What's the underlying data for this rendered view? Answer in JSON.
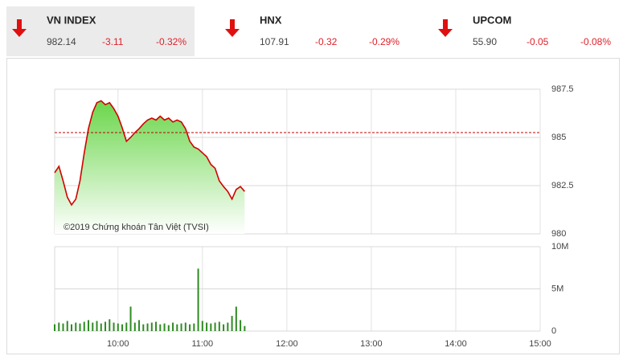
{
  "tickers": [
    {
      "name": "VN INDEX",
      "value": "982.14",
      "change": "-3.11",
      "percent": "-0.32%"
    },
    {
      "name": "HNX",
      "value": "107.91",
      "change": "-0.32",
      "percent": "-0.29%"
    },
    {
      "name": "UPCOM",
      "value": "55.90",
      "change": "-0.05",
      "percent": "-0.08%"
    }
  ],
  "chart_data": [
    {
      "type": "area",
      "copyright": "©2019 Chứng khoán Tân Việt (TVSI)",
      "x": [
        9.25,
        9.3,
        9.35,
        9.4,
        9.45,
        9.5,
        9.55,
        9.6,
        9.65,
        9.7,
        9.75,
        9.8,
        9.85,
        9.9,
        9.95,
        10,
        10.05,
        10.1,
        10.15,
        10.2,
        10.25,
        10.3,
        10.35,
        10.4,
        10.45,
        10.5,
        10.55,
        10.6,
        10.65,
        10.7,
        10.75,
        10.8,
        10.85,
        10.9,
        10.95,
        11,
        11.05,
        11.1,
        11.15,
        11.2,
        11.25,
        11.3,
        11.35,
        11.4,
        11.45,
        11.5
      ],
      "values": [
        983.17,
        983.5,
        982.75,
        981.9,
        981.5,
        981.8,
        982.75,
        984.2,
        985.45,
        986.3,
        986.8,
        986.9,
        986.7,
        986.8,
        986.5,
        986.1,
        985.5,
        984.8,
        985.0,
        985.25,
        985.45,
        985.7,
        985.9,
        986.0,
        985.9,
        986.1,
        985.9,
        986.0,
        985.8,
        985.9,
        985.8,
        985.45,
        984.8,
        984.5,
        984.4,
        984.2,
        984.0,
        983.6,
        983.4,
        982.75,
        982.45,
        982.2,
        981.8,
        982.3,
        982.45,
        982.2
      ],
      "color": "#d40000",
      "fill_color": "#6ad64a",
      "reference": 985.25,
      "reference_color": "#c00000",
      "xlim": [
        9.25,
        15
      ],
      "ylim": [
        980,
        987.5
      ],
      "yticks": [
        980,
        982.5,
        985,
        987.5
      ],
      "grid": true
    },
    {
      "type": "bar",
      "x": [
        9.25,
        9.3,
        9.35,
        9.4,
        9.45,
        9.5,
        9.55,
        9.6,
        9.65,
        9.7,
        9.75,
        9.8,
        9.85,
        9.9,
        9.95,
        10,
        10.05,
        10.1,
        10.15,
        10.2,
        10.25,
        10.3,
        10.35,
        10.4,
        10.45,
        10.5,
        10.55,
        10.6,
        10.65,
        10.7,
        10.75,
        10.8,
        10.85,
        10.9,
        10.95,
        11,
        11.05,
        11.1,
        11.15,
        11.2,
        11.25,
        11.3,
        11.35,
        11.4,
        11.45,
        11.5
      ],
      "values": [
        800000,
        1000000,
        900000,
        1200000,
        800000,
        1000000,
        900000,
        1100000,
        1300000,
        1000000,
        1200000,
        900000,
        1100000,
        1400000,
        1000000,
        900000,
        800000,
        1000000,
        2900000,
        1000000,
        1300000,
        800000,
        900000,
        1000000,
        1100000,
        800000,
        900000,
        700000,
        1000000,
        800000,
        900000,
        1000000,
        800000,
        900000,
        7400000,
        1200000,
        1000000,
        900000,
        1000000,
        1100000,
        800000,
        1000000,
        1800000,
        2900000,
        1300000,
        600000
      ],
      "color": "#2e8b22",
      "xlim": [
        9.25,
        15
      ],
      "xticks": [
        {
          "value": 10,
          "label": "10:00"
        },
        {
          "value": 11,
          "label": "11:00"
        },
        {
          "value": 12,
          "label": "12:00"
        },
        {
          "value": 13,
          "label": "13:00"
        },
        {
          "value": 14,
          "label": "14:00"
        },
        {
          "value": 15,
          "label": "15:00"
        }
      ],
      "ylim": [
        0,
        10000000
      ],
      "yticks": [
        0,
        {
          "value": 5000000,
          "label": "5M"
        },
        {
          "value": 10000000,
          "label": "10M"
        }
      ],
      "grid": true
    }
  ]
}
